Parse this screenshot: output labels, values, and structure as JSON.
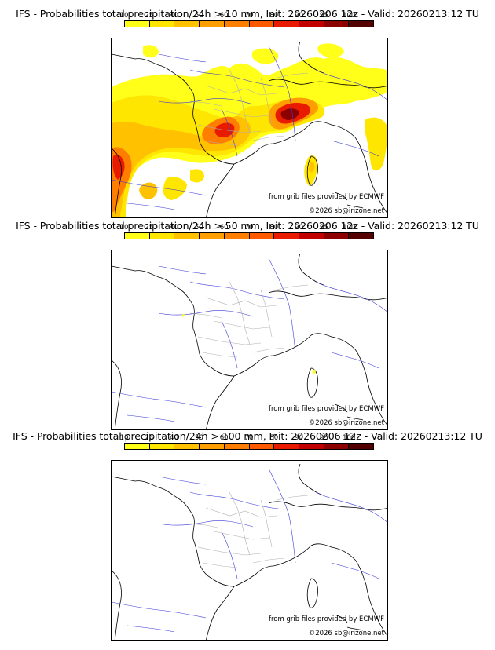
{
  "scale": {
    "ticks": [
      "10",
      "25",
      "40",
      "50",
      "60",
      "70",
      "80",
      "90",
      "95",
      "100"
    ],
    "colors": [
      "#ffff19",
      "#ffe600",
      "#ffc100",
      "#ff9e00",
      "#ff7e00",
      "#ff5a00",
      "#e81b00",
      "#c10000",
      "#8c0000",
      "#550000"
    ]
  },
  "panels": [
    {
      "title": "IFS - Probabilities total precipitation/24h > 10 mm, Init: 20260206 12z - Valid: 20260213:12 TU"
    },
    {
      "title": "IFS - Probabilities total precipitation/24h > 50 mm, Init: 20260206 12z - Valid: 20260213:12 TU"
    },
    {
      "title": "IFS - Probabilities total precipitation/24h > 100 mm, Init: 20260206 12z - Valid: 20260213:12 TU"
    }
  ],
  "credits": {
    "source": "from grib files provided by ECMWF",
    "copyright": "©2026 sb@irizone.net"
  }
}
